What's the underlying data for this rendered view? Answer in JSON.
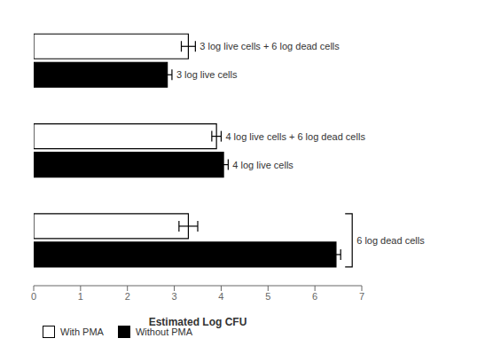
{
  "chart_data": {
    "type": "bar",
    "orientation": "horizontal",
    "xlabel": "Estimated Log CFU",
    "categories": [
      null,
      null,
      null
    ],
    "series": [
      {
        "name": "With PMA",
        "color": "#ffffff",
        "values": [
          3.3,
          3.9,
          3.3
        ],
        "errors": [
          0.15,
          0.1,
          0.2
        ]
      },
      {
        "name": "Without PMA",
        "color": "#000000",
        "values": [
          2.85,
          4.05,
          6.45
        ],
        "errors": [
          0.1,
          0.1,
          0.1
        ]
      }
    ],
    "xlim": [
      0,
      7
    ],
    "xticks": [
      0,
      1,
      2,
      3,
      4,
      5,
      6,
      7
    ],
    "annotations": [
      {
        "text": "3 log live cells + 6 log dead cells",
        "category": 0,
        "series": "With PMA"
      },
      {
        "text": "3 log live cells",
        "category": 0,
        "series": "Without PMA"
      },
      {
        "text": "4 log live cells + 6 log dead cells",
        "category": 1,
        "series": "With PMA"
      },
      {
        "text": "4 log live cells",
        "category": 1,
        "series": "Without PMA"
      },
      {
        "text": "6 log dead cells",
        "category": 2
      }
    ],
    "grid": false,
    "legend": "lower left",
    "tick_labels": "x"
  }
}
